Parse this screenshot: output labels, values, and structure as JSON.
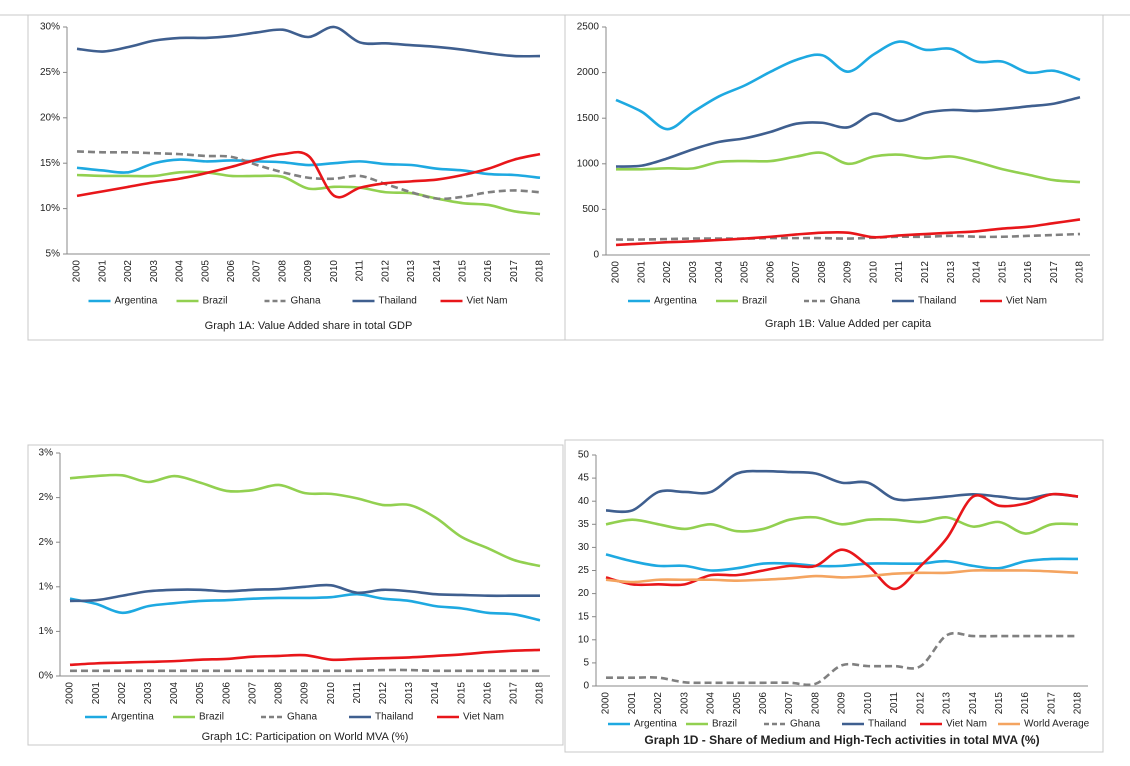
{
  "chart_data": [
    {
      "type": "line",
      "title": "Graph 1A: Value Added share in total GDP",
      "categories": [
        "2000",
        "2001",
        "2002",
        "2003",
        "2004",
        "2005",
        "2006",
        "2007",
        "2008",
        "2009",
        "2010",
        "2011",
        "2012",
        "2013",
        "2014",
        "2015",
        "2016",
        "2017",
        "2018"
      ],
      "ylim": [
        5,
        30
      ],
      "yticks": [
        {
          "value": 5,
          "label": "5%"
        },
        {
          "value": 10,
          "label": "10%"
        },
        {
          "value": 15,
          "label": "15%"
        },
        {
          "value": 20,
          "label": "20%"
        },
        {
          "value": 25,
          "label": "25%"
        },
        {
          "value": 30,
          "label": "30%"
        }
      ],
      "grid": false,
      "series": [
        {
          "name": "Argentina",
          "color": "#1ea9e1",
          "values": [
            14.5,
            14.2,
            14.0,
            15.0,
            15.4,
            15.2,
            15.3,
            15.2,
            15.1,
            14.8,
            15.0,
            15.2,
            14.9,
            14.8,
            14.4,
            14.2,
            13.8,
            13.7,
            13.4
          ]
        },
        {
          "name": "Brazil",
          "color": "#92d050",
          "values": [
            13.7,
            13.6,
            13.6,
            13.6,
            14.0,
            14.0,
            13.6,
            13.6,
            13.5,
            12.2,
            12.4,
            12.3,
            11.8,
            11.7,
            11.1,
            10.6,
            10.4,
            9.7,
            9.4
          ]
        },
        {
          "name": "Ghana",
          "color": "#808080",
          "line_style": "dashed",
          "values": [
            16.3,
            16.2,
            16.2,
            16.1,
            16.0,
            15.8,
            15.7,
            14.8,
            14.0,
            13.4,
            13.3,
            13.6,
            12.7,
            11.8,
            11.1,
            11.3,
            11.8,
            12.0,
            11.8
          ]
        },
        {
          "name": "Thailand",
          "color": "#3f5f8f",
          "values": [
            27.6,
            27.3,
            27.8,
            28.5,
            28.8,
            28.8,
            29.0,
            29.4,
            29.7,
            28.9,
            30.0,
            28.3,
            28.2,
            28.0,
            27.8,
            27.5,
            27.1,
            26.8,
            26.8
          ]
        },
        {
          "name": "Viet Nam",
          "color": "#e8161a",
          "values": [
            11.4,
            11.9,
            12.4,
            12.9,
            13.3,
            13.9,
            14.6,
            15.4,
            16.0,
            15.8,
            11.4,
            12.3,
            12.8,
            13.0,
            13.2,
            13.7,
            14.4,
            15.4,
            16.0
          ]
        }
      ]
    },
    {
      "type": "line",
      "title": "Graph 1B: Value Added per capita",
      "categories": [
        "2000",
        "2001",
        "2002",
        "2003",
        "2004",
        "2005",
        "2006",
        "2007",
        "2008",
        "2009",
        "2010",
        "2011",
        "2012",
        "2013",
        "2014",
        "2015",
        "2016",
        "2017",
        "2018"
      ],
      "ylim": [
        0,
        2500
      ],
      "yticks": [
        0,
        500,
        1000,
        1500,
        2000,
        2500
      ],
      "grid": false,
      "series": [
        {
          "name": "Argentina",
          "color": "#1ea9e1",
          "values": [
            1700,
            1570,
            1380,
            1570,
            1740,
            1860,
            2010,
            2140,
            2190,
            2010,
            2200,
            2340,
            2250,
            2260,
            2120,
            2120,
            2000,
            2020,
            1920
          ]
        },
        {
          "name": "Brazil",
          "color": "#92d050",
          "values": [
            940,
            940,
            950,
            950,
            1020,
            1030,
            1030,
            1080,
            1120,
            1000,
            1080,
            1100,
            1060,
            1080,
            1020,
            940,
            880,
            820,
            800
          ]
        },
        {
          "name": "Ghana",
          "color": "#808080",
          "line_style": "dashed",
          "values": [
            170,
            170,
            175,
            180,
            180,
            180,
            185,
            185,
            185,
            180,
            190,
            200,
            200,
            210,
            200,
            200,
            210,
            220,
            230
          ]
        },
        {
          "name": "Thailand",
          "color": "#3f5f8f",
          "values": [
            970,
            980,
            1060,
            1160,
            1240,
            1280,
            1350,
            1440,
            1450,
            1400,
            1550,
            1470,
            1560,
            1590,
            1580,
            1600,
            1630,
            1660,
            1730
          ]
        },
        {
          "name": "Viet Nam",
          "color": "#e8161a",
          "values": [
            110,
            125,
            140,
            150,
            165,
            180,
            200,
            225,
            245,
            245,
            195,
            215,
            230,
            245,
            260,
            290,
            310,
            350,
            390
          ]
        }
      ]
    },
    {
      "type": "line",
      "title": "Graph 1C: Participation on World MVA (%)",
      "categories": [
        "2000",
        "2001",
        "2002",
        "2003",
        "2004",
        "2005",
        "2006",
        "2007",
        "2008",
        "2009",
        "2010",
        "2011",
        "2012",
        "2013",
        "2014",
        "2015",
        "2016",
        "2017",
        "2018"
      ],
      "ylim": [
        0,
        3
      ],
      "yticks": [
        {
          "value": 0,
          "label": "0%"
        },
        {
          "value": 0.6,
          "label": "1%"
        },
        {
          "value": 1.2,
          "label": "1%"
        },
        {
          "value": 1.8,
          "label": "2%"
        },
        {
          "value": 2.4,
          "label": "2%"
        },
        {
          "value": 3,
          "label": "3%"
        }
      ],
      "grid": false,
      "series": [
        {
          "name": "Argentina",
          "color": "#1ea9e1",
          "values": [
            1.04,
            0.97,
            0.85,
            0.94,
            0.98,
            1.01,
            1.02,
            1.04,
            1.05,
            1.05,
            1.06,
            1.1,
            1.04,
            1.01,
            0.94,
            0.91,
            0.85,
            0.83,
            0.75
          ]
        },
        {
          "name": "Brazil",
          "color": "#92d050",
          "values": [
            2.66,
            2.69,
            2.7,
            2.61,
            2.69,
            2.6,
            2.49,
            2.5,
            2.57,
            2.46,
            2.45,
            2.39,
            2.3,
            2.3,
            2.13,
            1.87,
            1.72,
            1.56,
            1.48
          ]
        },
        {
          "name": "Ghana",
          "color": "#808080",
          "line_style": "dashed",
          "values": [
            0.07,
            0.07,
            0.07,
            0.07,
            0.07,
            0.07,
            0.07,
            0.07,
            0.07,
            0.07,
            0.07,
            0.07,
            0.08,
            0.08,
            0.07,
            0.07,
            0.07,
            0.07,
            0.07
          ]
        },
        {
          "name": "Thailand",
          "color": "#3f5f8f",
          "values": [
            1.01,
            1.02,
            1.08,
            1.14,
            1.16,
            1.16,
            1.14,
            1.16,
            1.17,
            1.2,
            1.22,
            1.12,
            1.16,
            1.14,
            1.1,
            1.09,
            1.08,
            1.08,
            1.08
          ]
        },
        {
          "name": "Viet Nam",
          "color": "#e8161a",
          "values": [
            0.15,
            0.17,
            0.18,
            0.19,
            0.2,
            0.22,
            0.23,
            0.26,
            0.27,
            0.28,
            0.22,
            0.23,
            0.24,
            0.25,
            0.27,
            0.29,
            0.32,
            0.34,
            0.35
          ]
        }
      ]
    },
    {
      "type": "line",
      "title": "Graph 1D - Share of Medium and High-Tech activities in total MVA (%)",
      "categories": [
        "2000",
        "2001",
        "2002",
        "2003",
        "2004",
        "2005",
        "2006",
        "2007",
        "2008",
        "2009",
        "2010",
        "2011",
        "2012",
        "2013",
        "2014",
        "2015",
        "2016",
        "2017",
        "2018"
      ],
      "ylim": [
        0,
        50
      ],
      "yticks": [
        0,
        5,
        10,
        15,
        20,
        25,
        30,
        35,
        40,
        45,
        50
      ],
      "grid": false,
      "series": [
        {
          "name": "Argentina",
          "color": "#1ea9e1",
          "values": [
            28.5,
            27,
            26,
            26,
            25,
            25.5,
            26.5,
            26.5,
            26,
            26,
            26.5,
            26.5,
            26.5,
            27,
            26,
            25.5,
            27,
            27.5,
            27.5
          ]
        },
        {
          "name": "Brazil",
          "color": "#92d050",
          "values": [
            35,
            36,
            35,
            34,
            35,
            33.5,
            34,
            36,
            36.5,
            35,
            36,
            36,
            35.5,
            36.5,
            34.5,
            35.5,
            33,
            35,
            35
          ]
        },
        {
          "name": "Ghana",
          "color": "#808080",
          "line_style": "dashed",
          "values": [
            1.8,
            1.8,
            1.8,
            0.8,
            0.7,
            0.7,
            0.7,
            0.7,
            0.5,
            4.5,
            4.3,
            4.3,
            4.3,
            11,
            10.8,
            10.8,
            10.8,
            10.8,
            10.8
          ]
        },
        {
          "name": "Thailand",
          "color": "#3f5f8f",
          "values": [
            38,
            38,
            42,
            42,
            42,
            46,
            46.5,
            46.3,
            46,
            44,
            44,
            40.5,
            40.5,
            41,
            41.5,
            41,
            40.5,
            41.5,
            41
          ]
        },
        {
          "name": "Viet Nam",
          "color": "#e8161a",
          "values": [
            23.5,
            22,
            22,
            22,
            24,
            24,
            25,
            26,
            26,
            29.5,
            26,
            21,
            26,
            32,
            41,
            39,
            39.5,
            41.5,
            41
          ]
        },
        {
          "name": "World Average",
          "color": "#f4a460",
          "values": [
            23,
            22.5,
            23,
            23,
            23,
            22.8,
            23,
            23.3,
            23.8,
            23.5,
            23.8,
            24.3,
            24.5,
            24.5,
            25,
            25,
            25,
            24.8,
            24.5
          ]
        }
      ]
    }
  ]
}
